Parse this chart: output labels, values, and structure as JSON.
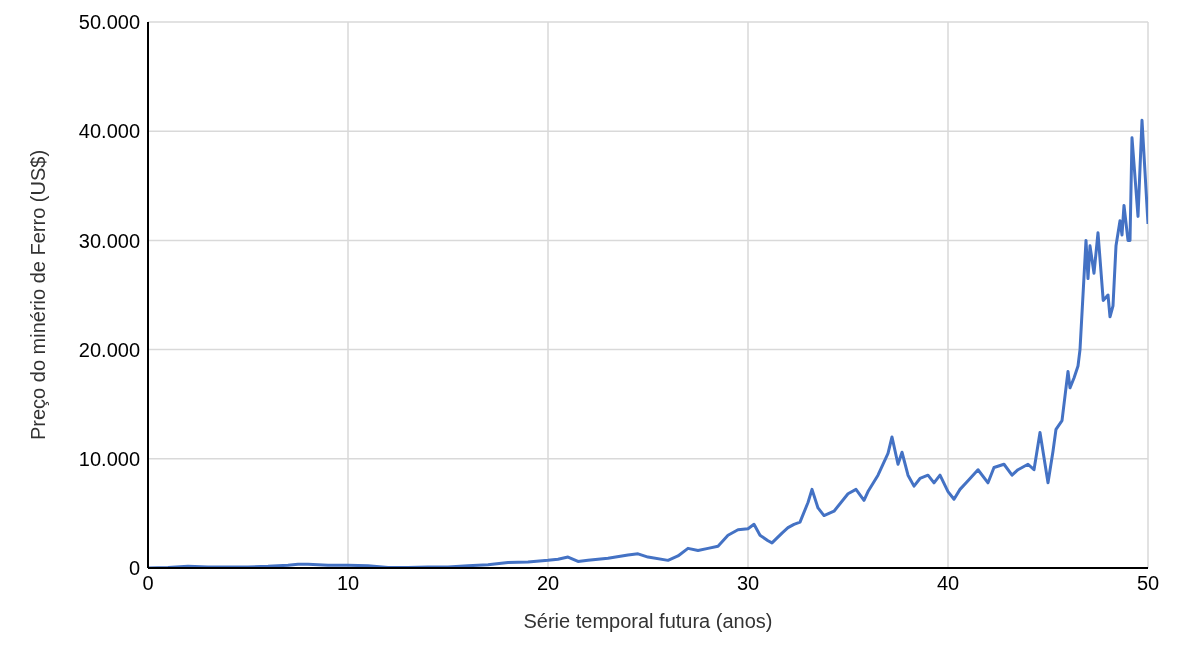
{
  "chart_data": {
    "type": "line",
    "xlabel": "Série temporal futura (anos)",
    "ylabel": "Preço do minério de Ferro (US$)",
    "x": [
      0,
      1,
      2,
      3,
      4,
      5,
      6,
      7,
      7.5,
      8,
      9,
      10,
      11,
      12,
      13,
      14,
      15,
      16,
      17,
      18,
      19,
      20,
      20.5,
      21,
      21.5,
      22,
      23,
      24,
      24.5,
      25,
      26,
      26.5,
      27,
      27.5,
      28,
      28.5,
      29,
      29.5,
      30,
      30.3,
      30.6,
      31,
      31.2,
      31.7,
      32,
      32.3,
      32.6,
      33,
      33.2,
      33.5,
      33.8,
      34.3,
      35,
      35.4,
      35.8,
      36,
      36.5,
      37,
      37.2,
      37.5,
      37.7,
      38,
      38.3,
      38.6,
      39,
      39.3,
      39.6,
      40,
      40.3,
      40.6,
      41,
      41.5,
      42,
      42.3,
      42.8,
      43.2,
      43.5,
      44,
      44.3,
      44.6,
      45,
      45.25,
      45.4,
      45.7,
      46,
      46.1,
      46.3,
      46.5,
      46.6,
      46.9,
      47,
      47.1,
      47.3,
      47.5,
      47.76,
      48,
      48.1,
      48.25,
      48.4,
      48.6,
      48.7,
      48.8,
      49,
      49.1,
      49.2,
      49.5,
      49.7,
      50
    ],
    "series": [
      {
        "color": "#4472c4",
        "values": [
          0,
          50,
          150,
          100,
          100,
          100,
          150,
          250,
          350,
          350,
          250,
          250,
          200,
          50,
          50,
          100,
          100,
          200,
          300,
          500,
          550,
          700,
          800,
          1000,
          600,
          700,
          900,
          1200,
          1300,
          1000,
          700,
          1100,
          1800,
          1600,
          1800,
          2000,
          3000,
          3500,
          3600,
          4000,
          3000,
          2500,
          2300,
          3200,
          3700,
          4000,
          4200,
          6000,
          7200,
          5500,
          4800,
          5200,
          6800,
          7200,
          6200,
          7000,
          8500,
          10500,
          12000,
          9500,
          10600,
          8500,
          7500,
          8200,
          8500,
          7800,
          8500,
          7000,
          6300,
          7200,
          8000,
          9000,
          7800,
          9200,
          9500,
          8500,
          9000,
          9500,
          9000,
          12400,
          7800,
          10700,
          12700,
          13500,
          18000,
          16500,
          17400,
          18500,
          20000,
          30000,
          26500,
          29500,
          27000,
          30700,
          24500,
          25000,
          23000,
          24000,
          29500,
          31800,
          30500,
          33200,
          30000,
          30000,
          39400,
          32200,
          41000,
          31500
        ]
      }
    ],
    "xlim": [
      0,
      50
    ],
    "xticks": [
      0,
      10,
      20,
      30,
      40,
      50
    ],
    "ylim": [
      0,
      50000
    ],
    "yticks": [
      {
        "value": 0,
        "label": "0"
      },
      {
        "value": 10000,
        "label": "10.000"
      },
      {
        "value": 20000,
        "label": "20.000"
      },
      {
        "value": 30000,
        "label": "30.000"
      },
      {
        "value": 40000,
        "label": "40.000"
      },
      {
        "value": 50000,
        "label": "50.000"
      }
    ],
    "grid": true,
    "marker": "none",
    "line_style": "solid"
  }
}
